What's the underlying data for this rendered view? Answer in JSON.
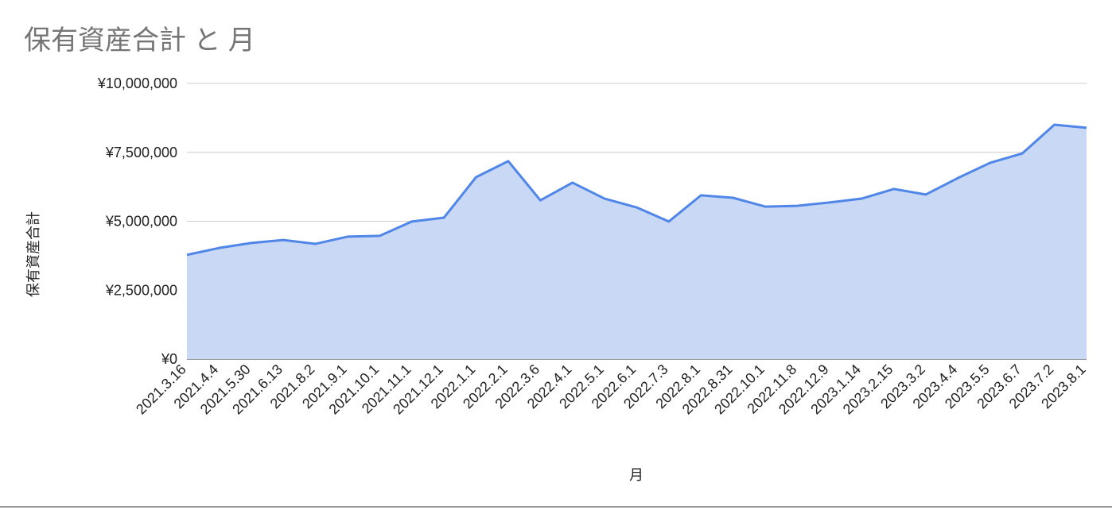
{
  "chart_data": {
    "type": "area",
    "title": "保有資産合計 と 月",
    "x_label": "月",
    "y_label": "保有資産合計",
    "categories": [
      "2021.3.16",
      "2021.4.4",
      "2021.5.30",
      "2021.6.13",
      "2021.8.2",
      "2021.9.1",
      "2021.10.1",
      "2021.11.1",
      "2021.12.1",
      "2022.1.1",
      "2022.2.1",
      "2022.3.6",
      "2022.4.1",
      "2022.5.1",
      "2022.6.1",
      "2022.7.3",
      "2022.8.1",
      "2022.8.31",
      "2022.10.1",
      "2022.11.8",
      "2022.12.9",
      "2023.1.14",
      "2023.2.15",
      "2023.3.2",
      "2023.4.4",
      "2023.5.5",
      "2023.6.7",
      "2023.7.2",
      "2023.8.1"
    ],
    "series": [
      {
        "name": "保有資産合計",
        "color": "#4f86e8",
        "fill": "#c9d9f5",
        "values": [
          3780000,
          4030000,
          4210000,
          4320000,
          4180000,
          4440000,
          4470000,
          4990000,
          5130000,
          6600000,
          7180000,
          5760000,
          6400000,
          5820000,
          5500000,
          4990000,
          5940000,
          5850000,
          5530000,
          5560000,
          5680000,
          5820000,
          6170000,
          5970000,
          6570000,
          7120000,
          7460000,
          8500000,
          8390000
        ]
      }
    ],
    "ylim": [
      0,
      10000000
    ],
    "yticks": [
      {
        "value": 0,
        "label": "¥0"
      },
      {
        "value": 2500000,
        "label": "¥2,500,000"
      },
      {
        "value": 5000000,
        "label": "¥5,000,000"
      },
      {
        "value": 7500000,
        "label": "¥7,500,000"
      },
      {
        "value": 10000000,
        "label": "¥10,000,000"
      }
    ],
    "grid": true
  }
}
